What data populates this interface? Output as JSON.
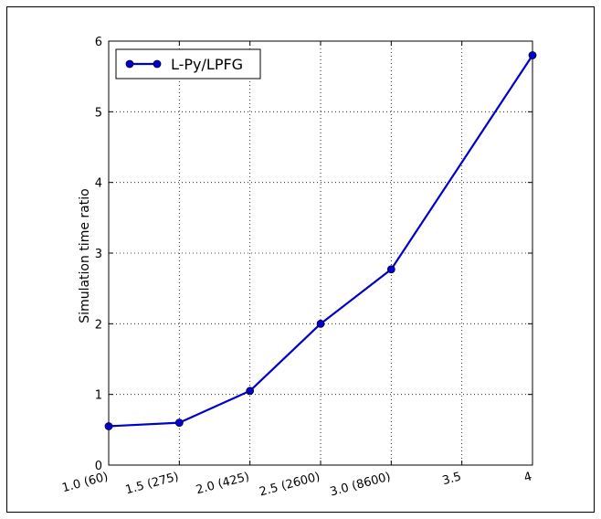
{
  "chart_data": {
    "type": "line",
    "title": "",
    "xlabel": "",
    "ylabel": "Simulation time ratio",
    "x": [
      1.0,
      1.5,
      2.0,
      2.5,
      3.0,
      4.0
    ],
    "x_tick_values": [
      1.0,
      1.5,
      2.0,
      2.5,
      3.0,
      3.5,
      4.0
    ],
    "x_tick_labels": [
      "1.0 (60)",
      "1.5 (275)",
      "2.0 (425)",
      "2.5 (2600)",
      "3.0 (8600)",
      "3.5",
      "4"
    ],
    "xlim": [
      1.0,
      4.0
    ],
    "y_tick_values": [
      0,
      1,
      2,
      3,
      4,
      5,
      6
    ],
    "y_tick_labels": [
      "0",
      "1",
      "2",
      "3",
      "4",
      "5",
      "6"
    ],
    "ylim": [
      0,
      6
    ],
    "grid": true,
    "legend_position": "top-left",
    "series": [
      {
        "name": "L-Py/LPFG",
        "color": "#0000cc",
        "marker": "circle",
        "values": [
          0.55,
          0.6,
          1.05,
          2.0,
          2.77,
          5.8
        ]
      }
    ]
  }
}
